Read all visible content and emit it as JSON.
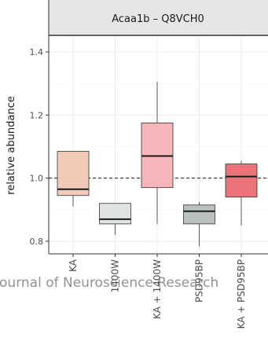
{
  "chart_data": {
    "type": "boxplot",
    "title": "Acaa1b – Q8VCH0",
    "xlabel": "",
    "ylabel": "relative abundance",
    "ylim": [
      0.76,
      1.45
    ],
    "yticks": [
      0.8,
      1.0,
      1.2,
      1.4
    ],
    "reference_line": 1.0,
    "grid": true,
    "categories": [
      "KA",
      "1400W",
      "KA + 1400W",
      "PSD95BP",
      "KA + PSD95BP"
    ],
    "boxes": [
      {
        "label": "KA",
        "whisker_low": 0.91,
        "q1": 0.945,
        "median": 0.965,
        "q3": 1.085,
        "whisker_high": 1.085,
        "color": "#f3c9b7"
      },
      {
        "label": "1400W",
        "whisker_low": 0.82,
        "q1": 0.855,
        "median": 0.87,
        "q3": 0.92,
        "whisker_high": 0.92,
        "color": "#dfe3e3"
      },
      {
        "label": "KA + 1400W",
        "whisker_low": 0.855,
        "q1": 0.97,
        "median": 1.07,
        "q3": 1.175,
        "whisker_high": 1.305,
        "color": "#f5b5b9"
      },
      {
        "label": "PSD95BP",
        "whisker_low": 0.785,
        "q1": 0.855,
        "median": 0.895,
        "q3": 0.915,
        "whisker_high": 0.925,
        "color": "#b9c0c0"
      },
      {
        "label": "KA + PSD95BP",
        "whisker_low": 0.85,
        "q1": 0.94,
        "median": 1.005,
        "q3": 1.045,
        "whisker_high": 1.055,
        "color": "#ea7478"
      }
    ]
  },
  "watermark": "Journal of Neuroscience Research"
}
